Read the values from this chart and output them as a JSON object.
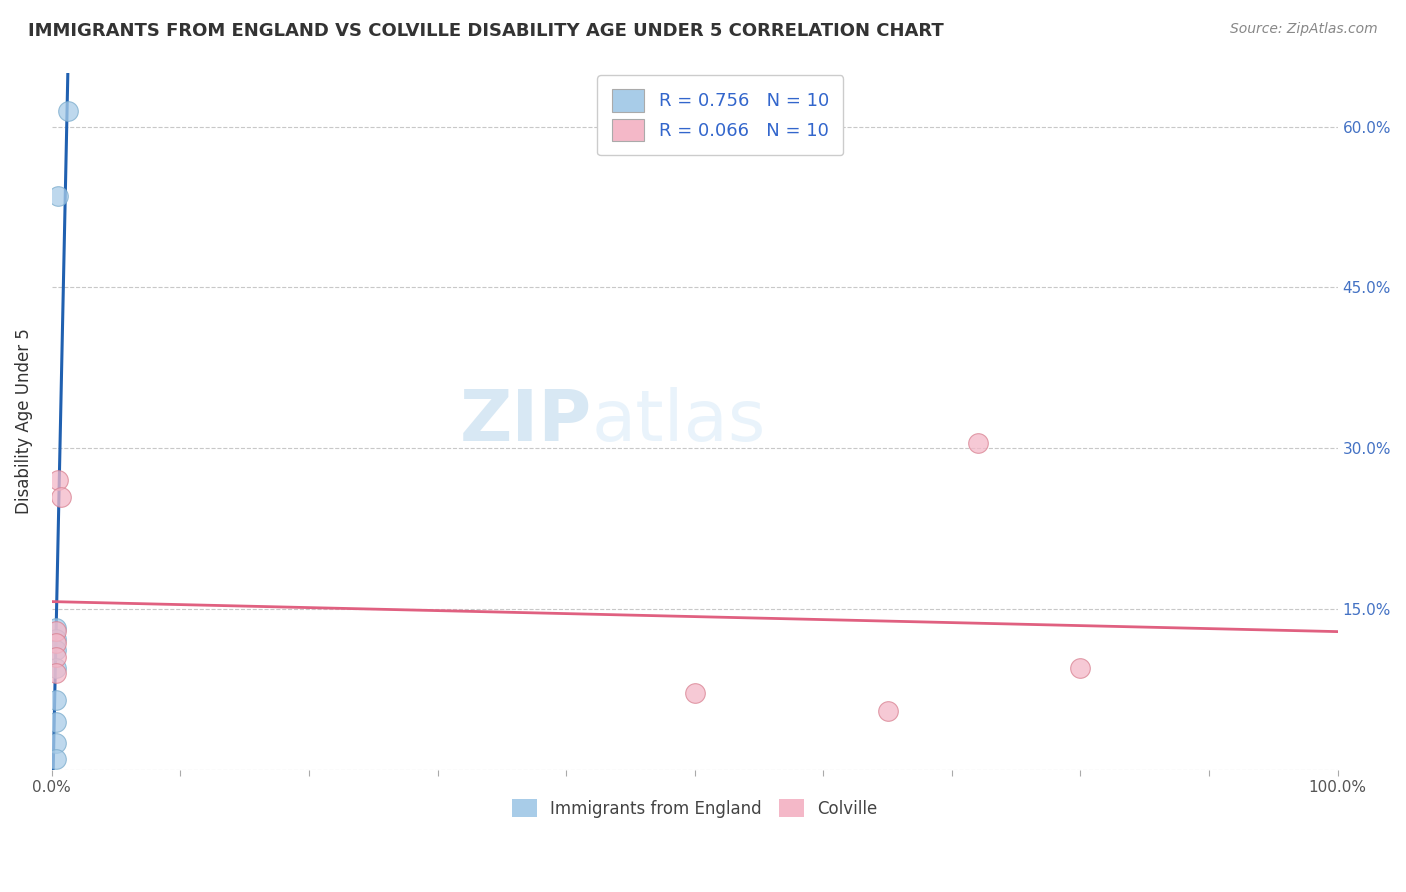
{
  "title": "IMMIGRANTS FROM ENGLAND VS COLVILLE DISABILITY AGE UNDER 5 CORRELATION CHART",
  "source": "Source: ZipAtlas.com",
  "ylabel": "Disability Age Under 5",
  "xlabel_legend1": "Immigrants from England",
  "xlabel_legend2": "Colville",
  "xlim": [
    0.0,
    1.0
  ],
  "ylim": [
    0.0,
    0.65
  ],
  "xticks": [
    0.0,
    0.25,
    0.5,
    0.75,
    1.0
  ],
  "xtick_labels": [
    "0.0%",
    "",
    "",
    "",
    "100.0%"
  ],
  "yticks": [
    0.0,
    0.15,
    0.3,
    0.45,
    0.6
  ],
  "ytick_labels_left": [
    "",
    "",
    "",
    "",
    ""
  ],
  "ytick_labels_right": [
    "",
    "15.0%",
    "30.0%",
    "45.0%",
    "60.0%"
  ],
  "R1": 0.756,
  "N1": 10,
  "R2": 0.066,
  "N2": 10,
  "color_blue": "#a8cce8",
  "color_pink": "#f4b8c8",
  "color_blue_line": "#2060b0",
  "color_pink_line": "#e06080",
  "scatter_blue": [
    [
      0.005,
      0.535
    ],
    [
      0.013,
      0.615
    ],
    [
      0.003,
      0.132
    ],
    [
      0.003,
      0.122
    ],
    [
      0.003,
      0.112
    ],
    [
      0.003,
      0.095
    ],
    [
      0.003,
      0.065
    ],
    [
      0.003,
      0.045
    ],
    [
      0.003,
      0.025
    ],
    [
      0.003,
      0.01
    ]
  ],
  "scatter_pink": [
    [
      0.005,
      0.27
    ],
    [
      0.007,
      0.255
    ],
    [
      0.003,
      0.13
    ],
    [
      0.003,
      0.118
    ],
    [
      0.003,
      0.105
    ],
    [
      0.003,
      0.09
    ],
    [
      0.5,
      0.072
    ],
    [
      0.65,
      0.055
    ],
    [
      0.72,
      0.305
    ],
    [
      0.8,
      0.095
    ]
  ],
  "watermark_zip": "ZIP",
  "watermark_atlas": "atlas",
  "background_color": "#ffffff",
  "grid_color": "#c8c8c8"
}
